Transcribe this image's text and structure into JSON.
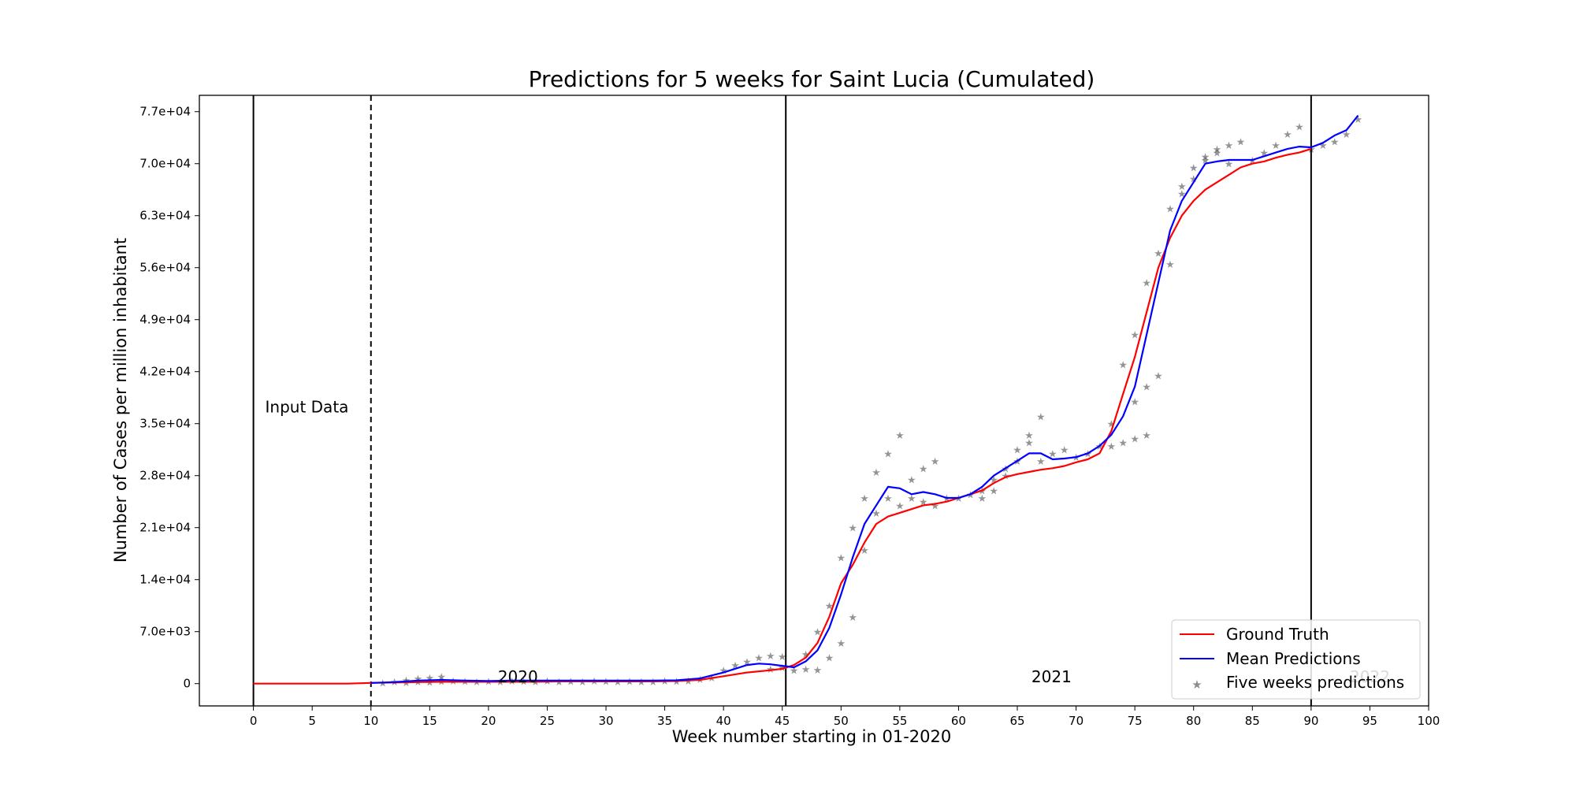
{
  "chart_data": {
    "type": "line",
    "title": "Predictions for 5 weeks for Saint Lucia (Cumulated)",
    "xlabel": "Week number starting in 01-2020",
    "ylabel": "Number of Cases per million inhabitant",
    "xlim": [
      -4.6,
      100
    ],
    "ylim": [
      -3000,
      79200
    ],
    "x_ticks": [
      0,
      5,
      10,
      15,
      20,
      25,
      30,
      35,
      40,
      45,
      50,
      55,
      60,
      65,
      70,
      75,
      80,
      85,
      90,
      95,
      100
    ],
    "x_tick_labels": [
      "0",
      "5",
      "10",
      "15",
      "20",
      "25",
      "30",
      "35",
      "40",
      "45",
      "50",
      "55",
      "60",
      "65",
      "70",
      "75",
      "80",
      "85",
      "90",
      "95",
      "100"
    ],
    "y_ticks": [
      0,
      7000,
      14000,
      21000,
      28000,
      35000,
      42000,
      49000,
      56000,
      63000,
      70000,
      77000
    ],
    "y_tick_labels": [
      "0",
      "7.0e+03",
      "1.4e+04",
      "2.1e+04",
      "2.8e+04",
      "3.5e+04",
      "4.2e+04",
      "4.9e+04",
      "5.6e+04",
      "6.3e+04",
      "7.0e+04",
      "7.7e+04"
    ],
    "vertical_lines": [
      {
        "x": 0,
        "style": "solid"
      },
      {
        "x": 10,
        "style": "dashed"
      },
      {
        "x": 45.3,
        "style": "solid"
      },
      {
        "x": 90,
        "style": "solid"
      }
    ],
    "annotations": [
      {
        "text": "Input Data",
        "x": 1,
        "y": 36500,
        "color": "#000000"
      },
      {
        "text": "2020",
        "x": 20.8,
        "y": 200,
        "color": "#000000"
      },
      {
        "text": "2021",
        "x": 66.2,
        "y": 200,
        "color": "#000000"
      },
      {
        "text": "2022",
        "x": 93.3,
        "y": 200,
        "color": "#bbbbbb"
      }
    ],
    "legend": {
      "placement": "lower-right",
      "entries": [
        "Ground Truth",
        "Mean Predictions",
        "Five weeks predictions"
      ]
    },
    "series": [
      {
        "name": "Ground Truth",
        "color": "#ff0000",
        "x": [
          0,
          2,
          4,
          6,
          8,
          10,
          12,
          14,
          16,
          18,
          20,
          22,
          24,
          26,
          28,
          30,
          32,
          34,
          36,
          38,
          40,
          42,
          44,
          45,
          46,
          47,
          48,
          49,
          50,
          51,
          52,
          53,
          54,
          55,
          56,
          57,
          58,
          59,
          60,
          61,
          62,
          63,
          64,
          65,
          66,
          67,
          68,
          69,
          70,
          71,
          72,
          73,
          74,
          75,
          76,
          77,
          78,
          79,
          80,
          81,
          82,
          83,
          84,
          85,
          86,
          87,
          88,
          89,
          90
        ],
        "values": [
          0,
          0,
          0,
          0,
          0,
          100,
          150,
          200,
          250,
          250,
          250,
          250,
          250,
          300,
          300,
          300,
          300,
          300,
          350,
          500,
          1000,
          1500,
          1800,
          2000,
          2500,
          3500,
          5500,
          9000,
          13500,
          16000,
          19000,
          21500,
          22500,
          23000,
          23500,
          24000,
          24200,
          24500,
          25000,
          25500,
          26000,
          27000,
          27800,
          28200,
          28500,
          28800,
          29000,
          29300,
          29800,
          30200,
          31000,
          34000,
          39000,
          44000,
          50000,
          56000,
          60000,
          63000,
          65000,
          66500,
          67500,
          68500,
          69500,
          70000,
          70300,
          70800,
          71200,
          71500,
          72000
        ]
      },
      {
        "name": "Mean Predictions",
        "color": "#0000ff",
        "x": [
          10,
          12,
          14,
          16,
          18,
          20,
          22,
          24,
          26,
          28,
          30,
          32,
          34,
          36,
          38,
          40,
          42,
          43,
          44,
          45,
          46,
          47,
          48,
          49,
          50,
          51,
          52,
          53,
          54,
          55,
          56,
          57,
          58,
          59,
          60,
          61,
          62,
          63,
          64,
          65,
          66,
          67,
          68,
          69,
          70,
          71,
          72,
          73,
          74,
          75,
          76,
          77,
          78,
          79,
          80,
          81,
          82,
          83,
          84,
          85,
          86,
          87,
          88,
          89,
          90,
          91,
          92,
          93,
          94
        ],
        "values": [
          100,
          200,
          400,
          500,
          400,
          350,
          400,
          400,
          400,
          400,
          400,
          400,
          400,
          450,
          700,
          1500,
          2500,
          2700,
          2600,
          2400,
          2200,
          3000,
          4500,
          7500,
          12000,
          17000,
          21500,
          24000,
          26500,
          26300,
          25500,
          25800,
          25500,
          25000,
          25000,
          25500,
          26500,
          28000,
          29000,
          30000,
          31000,
          31000,
          30200,
          30300,
          30500,
          31000,
          32000,
          33500,
          36000,
          40000,
          47000,
          54000,
          61000,
          65000,
          67500,
          70000,
          70300,
          70500,
          70500,
          70500,
          71000,
          71500,
          72000,
          72300,
          72200,
          72800,
          73800,
          74500,
          76500
        ]
      }
    ],
    "scatter_series": {
      "name": "Five weeks predictions",
      "points": [
        [
          11,
          150
        ],
        [
          12,
          300
        ],
        [
          13,
          500
        ],
        [
          14,
          700
        ],
        [
          15,
          800
        ],
        [
          16,
          1000
        ],
        [
          13,
          200
        ],
        [
          14,
          300
        ],
        [
          15,
          250
        ],
        [
          16,
          350
        ],
        [
          17,
          400
        ],
        [
          18,
          350
        ],
        [
          19,
          300
        ],
        [
          20,
          350
        ],
        [
          21,
          300
        ],
        [
          22,
          400
        ],
        [
          23,
          350
        ],
        [
          24,
          300
        ],
        [
          25,
          400
        ],
        [
          26,
          300
        ],
        [
          27,
          350
        ],
        [
          28,
          300
        ],
        [
          29,
          400
        ],
        [
          30,
          350
        ],
        [
          31,
          300
        ],
        [
          32,
          350
        ],
        [
          33,
          300
        ],
        [
          34,
          300
        ],
        [
          35,
          400
        ],
        [
          36,
          350
        ],
        [
          37,
          400
        ],
        [
          38,
          600
        ],
        [
          39,
          800
        ],
        [
          40,
          1800
        ],
        [
          41,
          2500
        ],
        [
          42,
          3000
        ],
        [
          43,
          3500
        ],
        [
          44,
          3800
        ],
        [
          45,
          3700
        ],
        [
          44,
          2000
        ],
        [
          45,
          2200
        ],
        [
          46,
          1800
        ],
        [
          47,
          2000
        ],
        [
          48,
          1900
        ],
        [
          47,
          4000
        ],
        [
          48,
          7000
        ],
        [
          49,
          10500
        ],
        [
          49,
          3500
        ],
        [
          50,
          5500
        ],
        [
          50,
          17000
        ],
        [
          51,
          21000
        ],
        [
          51,
          9000
        ],
        [
          52,
          25000
        ],
        [
          52,
          18000
        ],
        [
          53,
          28500
        ],
        [
          53,
          23000
        ],
        [
          54,
          31000
        ],
        [
          54,
          25000
        ],
        [
          55,
          33500
        ],
        [
          55,
          24000
        ],
        [
          56,
          27500
        ],
        [
          56,
          25000
        ],
        [
          57,
          29000
        ],
        [
          57,
          24500
        ],
        [
          58,
          30000
        ],
        [
          58,
          24000
        ],
        [
          59,
          25000
        ],
        [
          60,
          25000
        ],
        [
          61,
          25500
        ],
        [
          62,
          26000
        ],
        [
          62,
          25000
        ],
        [
          63,
          27500
        ],
        [
          63,
          26000
        ],
        [
          64,
          29000
        ],
        [
          64,
          28000
        ],
        [
          65,
          30000
        ],
        [
          65,
          31500
        ],
        [
          66,
          32500
        ],
        [
          66,
          33500
        ],
        [
          67,
          36000
        ],
        [
          67,
          30000
        ],
        [
          68,
          31000
        ],
        [
          69,
          31500
        ],
        [
          70,
          30500
        ],
        [
          71,
          31000
        ],
        [
          72,
          32000
        ],
        [
          73,
          32000
        ],
        [
          74,
          32500
        ],
        [
          75,
          33000
        ],
        [
          76,
          33500
        ],
        [
          73,
          35000
        ],
        [
          74,
          43000
        ],
        [
          75,
          47000
        ],
        [
          75,
          38000
        ],
        [
          76,
          40000
        ],
        [
          76,
          54000
        ],
        [
          77,
          58000
        ],
        [
          77,
          41500
        ],
        [
          78,
          56500
        ],
        [
          78,
          64000
        ],
        [
          79,
          66000
        ],
        [
          79,
          67000
        ],
        [
          80,
          68000
        ],
        [
          80,
          69500
        ],
        [
          81,
          70500
        ],
        [
          81,
          71000
        ],
        [
          82,
          72000
        ],
        [
          82,
          71500
        ],
        [
          83,
          72500
        ],
        [
          83,
          70000
        ],
        [
          84,
          73000
        ],
        [
          85,
          70500
        ],
        [
          86,
          71500
        ],
        [
          87,
          72500
        ],
        [
          88,
          74000
        ],
        [
          89,
          75000
        ],
        [
          90,
          72000
        ],
        [
          91,
          72500
        ],
        [
          92,
          73000
        ],
        [
          93,
          74000
        ],
        [
          94,
          76000
        ]
      ],
      "palette": [
        "#1f77b4",
        "#ff7f0e",
        "#2ca02c",
        "#d62728",
        "#9467bd",
        "#8c564b",
        "#e377c2",
        "#7f7f7f",
        "#bcbd22",
        "#17becf"
      ]
    }
  }
}
